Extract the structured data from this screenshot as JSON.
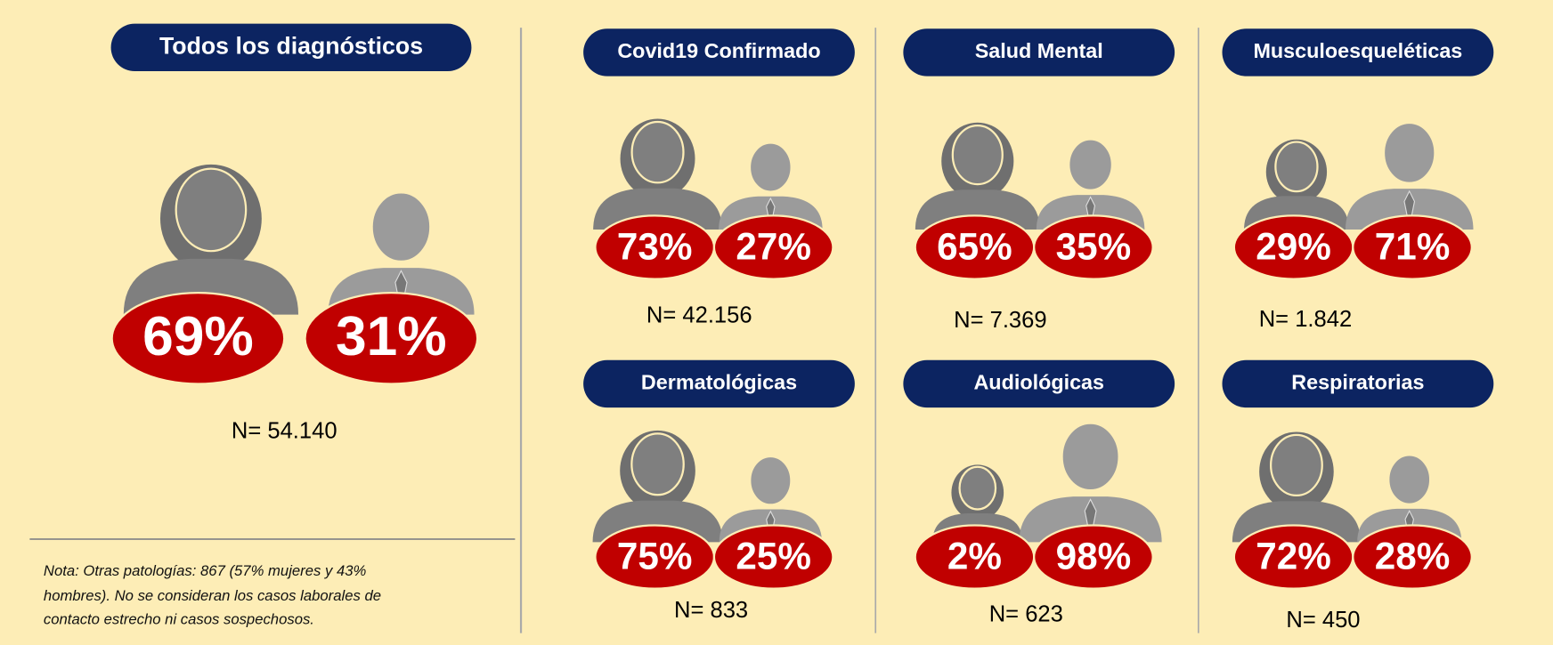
{
  "main": {
    "title": "Todos los diagnósticos",
    "women": "69%",
    "men": "31%",
    "n": "N= 54.140"
  },
  "note": [
    "Nota:  Otras patologías: 867 (57% mujeres y 43%",
    "hombres). No se consideran los casos laborales de",
    "contacto estrecho  ni casos sospechosos."
  ],
  "panels": [
    {
      "title": "Covid19 Confirmado",
      "women": "73%",
      "men": "27%",
      "n": "N= 42.156"
    },
    {
      "title": "Salud Mental",
      "women": "65%",
      "men": "35%",
      "n": "N= 7.369"
    },
    {
      "title": "Musculoesqueléticas",
      "women": "29%",
      "men": "71%",
      "n": "N= 1.842"
    },
    {
      "title": "Dermatológicas",
      "women": "75%",
      "men": "25%",
      "n": "N= 833"
    },
    {
      "title": "Audiológicas",
      "women": "2%",
      "men": "98%",
      "n": "N= 623"
    },
    {
      "title": "Respiratorias",
      "women": "72%",
      "men": "28%",
      "n": "N= 450"
    }
  ]
}
